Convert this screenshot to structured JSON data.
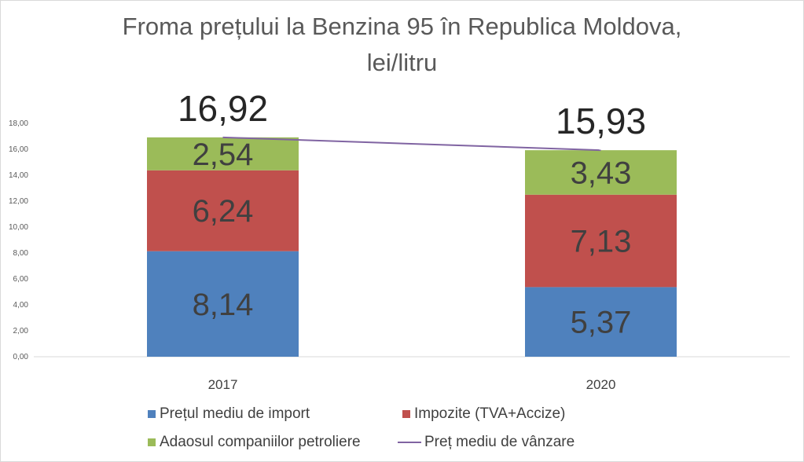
{
  "chart_data": {
    "type": "bar",
    "stacked": true,
    "title": "Froma prețului la Benzina 95 în Republica Moldova,",
    "title_line2": "lei/litru",
    "categories": [
      "2017",
      "2020"
    ],
    "series": [
      {
        "name": "Prețul mediu de import",
        "values": [
          8.14,
          5.37
        ],
        "labels": [
          "8,14",
          "5,37"
        ],
        "color": "#4f81bd"
      },
      {
        "name": "Impozite (TVA+Accize)",
        "values": [
          6.24,
          7.13
        ],
        "labels": [
          "6,24",
          "7,13"
        ],
        "color": "#c0504d"
      },
      {
        "name": "Adaosul companiilor petroliere",
        "values": [
          2.54,
          3.43
        ],
        "labels": [
          "2,54",
          "3,43"
        ],
        "color": "#9bbb59"
      }
    ],
    "line_series": {
      "name": "Preț mediu de vânzare",
      "values": [
        16.92,
        15.93
      ],
      "labels": [
        "16,92",
        "15,93"
      ],
      "color": "#8064a2"
    },
    "ylim": [
      0,
      18
    ],
    "y_ticks": [
      "0,00",
      "2,00",
      "4,00",
      "6,00",
      "8,00",
      "10,00",
      "12,00",
      "14,00",
      "16,00",
      "18,00"
    ],
    "grid": false,
    "legend_position": "bottom"
  }
}
